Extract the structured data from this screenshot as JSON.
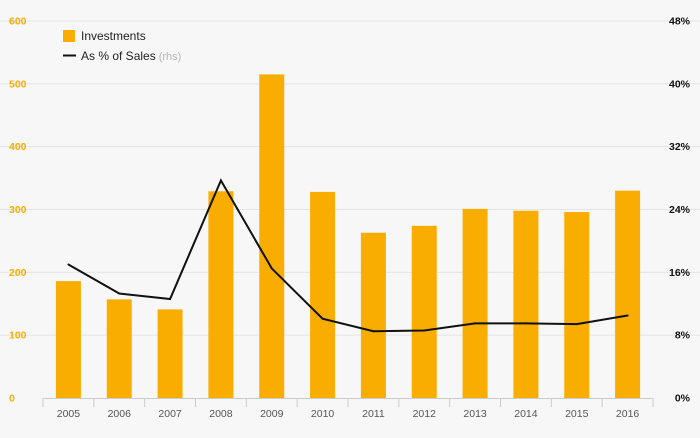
{
  "chart_data": {
    "type": "bar",
    "categories": [
      "2005",
      "2006",
      "2007",
      "2008",
      "2009",
      "2010",
      "2011",
      "2012",
      "2013",
      "2014",
      "2015",
      "2016"
    ],
    "series": [
      {
        "name": "Investments",
        "type": "bar",
        "axis": "left",
        "color": "#f8ad00",
        "values": [
          186,
          157,
          141,
          329,
          515,
          328,
          263,
          274,
          301,
          298,
          296,
          330
        ]
      },
      {
        "name": "As % of Sales",
        "name_suffix": "(rhs)",
        "type": "line",
        "axis": "right",
        "color": "#111111",
        "values": [
          17.0,
          13.3,
          12.6,
          27.7,
          16.5,
          10.1,
          8.5,
          8.6,
          9.5,
          9.5,
          9.4,
          10.5
        ]
      }
    ],
    "y_left": {
      "ylim": [
        0,
        600
      ],
      "ticks": [
        0,
        100,
        200,
        300,
        400,
        500,
        600
      ],
      "tick_labels": [
        "0",
        "100",
        "200",
        "300",
        "400",
        "500",
        "600"
      ],
      "color": "#f8ad00"
    },
    "y_right": {
      "ylim": [
        0,
        48
      ],
      "ticks": [
        0,
        8,
        16,
        24,
        32,
        40,
        48
      ],
      "tick_labels": [
        "0%",
        "8%",
        "16%",
        "24%",
        "32%",
        "40%",
        "48%"
      ],
      "color": "#111111"
    },
    "grid": true,
    "legend_position": "top-left"
  }
}
